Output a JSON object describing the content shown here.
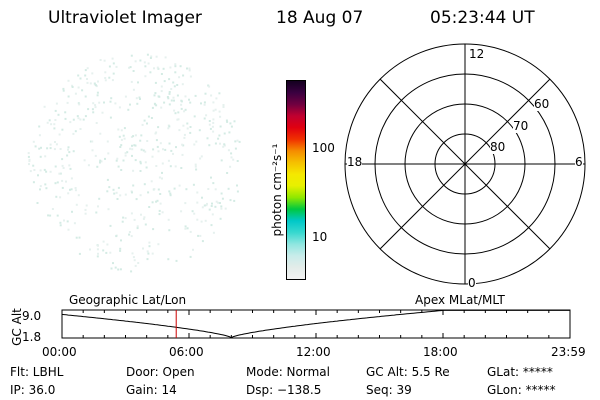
{
  "header": {
    "instrument": "Ultraviolet Imager",
    "date": "18 Aug 07",
    "time": "05:23:44 UT"
  },
  "colorbar": {
    "axis_label": "photon cm⁻²s⁻¹",
    "tick_100": "100",
    "tick_10": "10",
    "colors": [
      "#f2f2f2",
      "#e3ece9",
      "#c8ecea",
      "#8fe6e0",
      "#37d8cf",
      "#00c8c8",
      "#00c840",
      "#90e800",
      "#e8f000",
      "#f5e800",
      "#f5c000",
      "#f58c00",
      "#f03000",
      "#e00010",
      "#c00030",
      "#700040",
      "#3a0040",
      "#140020"
    ]
  },
  "polar": {
    "label_top": "12",
    "label_bottom": "0",
    "label_left": "18",
    "label_right": "6",
    "lat_60": "60",
    "lat_70": "70",
    "lat_80": "80"
  },
  "altitude_plot": {
    "ylabel": "GC Alt",
    "ytick_top": "9.0",
    "ytick_bottom": "1.8",
    "left_title": "Geographic Lat/Lon",
    "right_title": "Apex MLat/MLT",
    "xticks": [
      "00:00",
      "06:00",
      "12:00",
      "18:00",
      "23:59"
    ],
    "marker_color": "#cc0000",
    "marker_time": "05:23:44"
  },
  "info": {
    "flt": "Flt: LBHL",
    "door": "Door: Open",
    "mode": "Mode: Normal",
    "gcalt": "GC Alt: 5.5 Re",
    "glat": "GLat: *****",
    "ip": "IP: 36.0",
    "gain": "Gain: 14",
    "dsp": "Dsp: −138.5",
    "seq": "Seq: 39",
    "glon": "GLon: *****"
  }
}
